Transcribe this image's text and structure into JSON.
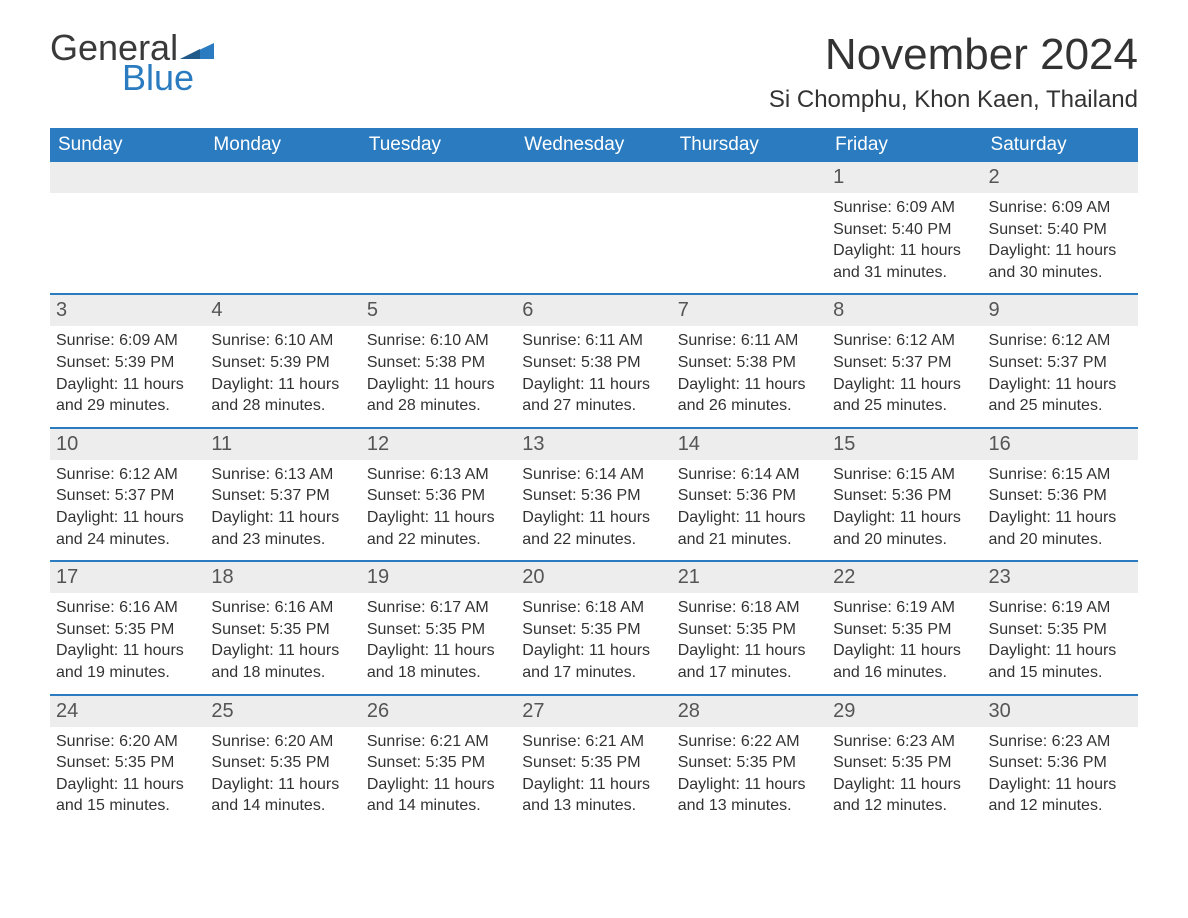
{
  "brand": {
    "part1": "General",
    "part2": "Blue",
    "flag_color": "#2a7bbf"
  },
  "title": "November 2024",
  "location": "Si Chomphu, Khon Kaen, Thailand",
  "colors": {
    "header_bg": "#2a7bbf",
    "header_text": "#ffffff",
    "daynum_bg": "#ededed",
    "text": "#333333",
    "rule": "#2a7bbf"
  },
  "weekday_labels": [
    "Sunday",
    "Monday",
    "Tuesday",
    "Wednesday",
    "Thursday",
    "Friday",
    "Saturday"
  ],
  "weeks": [
    [
      null,
      null,
      null,
      null,
      null,
      {
        "n": "1",
        "sunrise": "Sunrise: 6:09 AM",
        "sunset": "Sunset: 5:40 PM",
        "day1": "Daylight: 11 hours",
        "day2": "and 31 minutes."
      },
      {
        "n": "2",
        "sunrise": "Sunrise: 6:09 AM",
        "sunset": "Sunset: 5:40 PM",
        "day1": "Daylight: 11 hours",
        "day2": "and 30 minutes."
      }
    ],
    [
      {
        "n": "3",
        "sunrise": "Sunrise: 6:09 AM",
        "sunset": "Sunset: 5:39 PM",
        "day1": "Daylight: 11 hours",
        "day2": "and 29 minutes."
      },
      {
        "n": "4",
        "sunrise": "Sunrise: 6:10 AM",
        "sunset": "Sunset: 5:39 PM",
        "day1": "Daylight: 11 hours",
        "day2": "and 28 minutes."
      },
      {
        "n": "5",
        "sunrise": "Sunrise: 6:10 AM",
        "sunset": "Sunset: 5:38 PM",
        "day1": "Daylight: 11 hours",
        "day2": "and 28 minutes."
      },
      {
        "n": "6",
        "sunrise": "Sunrise: 6:11 AM",
        "sunset": "Sunset: 5:38 PM",
        "day1": "Daylight: 11 hours",
        "day2": "and 27 minutes."
      },
      {
        "n": "7",
        "sunrise": "Sunrise: 6:11 AM",
        "sunset": "Sunset: 5:38 PM",
        "day1": "Daylight: 11 hours",
        "day2": "and 26 minutes."
      },
      {
        "n": "8",
        "sunrise": "Sunrise: 6:12 AM",
        "sunset": "Sunset: 5:37 PM",
        "day1": "Daylight: 11 hours",
        "day2": "and 25 minutes."
      },
      {
        "n": "9",
        "sunrise": "Sunrise: 6:12 AM",
        "sunset": "Sunset: 5:37 PM",
        "day1": "Daylight: 11 hours",
        "day2": "and 25 minutes."
      }
    ],
    [
      {
        "n": "10",
        "sunrise": "Sunrise: 6:12 AM",
        "sunset": "Sunset: 5:37 PM",
        "day1": "Daylight: 11 hours",
        "day2": "and 24 minutes."
      },
      {
        "n": "11",
        "sunrise": "Sunrise: 6:13 AM",
        "sunset": "Sunset: 5:37 PM",
        "day1": "Daylight: 11 hours",
        "day2": "and 23 minutes."
      },
      {
        "n": "12",
        "sunrise": "Sunrise: 6:13 AM",
        "sunset": "Sunset: 5:36 PM",
        "day1": "Daylight: 11 hours",
        "day2": "and 22 minutes."
      },
      {
        "n": "13",
        "sunrise": "Sunrise: 6:14 AM",
        "sunset": "Sunset: 5:36 PM",
        "day1": "Daylight: 11 hours",
        "day2": "and 22 minutes."
      },
      {
        "n": "14",
        "sunrise": "Sunrise: 6:14 AM",
        "sunset": "Sunset: 5:36 PM",
        "day1": "Daylight: 11 hours",
        "day2": "and 21 minutes."
      },
      {
        "n": "15",
        "sunrise": "Sunrise: 6:15 AM",
        "sunset": "Sunset: 5:36 PM",
        "day1": "Daylight: 11 hours",
        "day2": "and 20 minutes."
      },
      {
        "n": "16",
        "sunrise": "Sunrise: 6:15 AM",
        "sunset": "Sunset: 5:36 PM",
        "day1": "Daylight: 11 hours",
        "day2": "and 20 minutes."
      }
    ],
    [
      {
        "n": "17",
        "sunrise": "Sunrise: 6:16 AM",
        "sunset": "Sunset: 5:35 PM",
        "day1": "Daylight: 11 hours",
        "day2": "and 19 minutes."
      },
      {
        "n": "18",
        "sunrise": "Sunrise: 6:16 AM",
        "sunset": "Sunset: 5:35 PM",
        "day1": "Daylight: 11 hours",
        "day2": "and 18 minutes."
      },
      {
        "n": "19",
        "sunrise": "Sunrise: 6:17 AM",
        "sunset": "Sunset: 5:35 PM",
        "day1": "Daylight: 11 hours",
        "day2": "and 18 minutes."
      },
      {
        "n": "20",
        "sunrise": "Sunrise: 6:18 AM",
        "sunset": "Sunset: 5:35 PM",
        "day1": "Daylight: 11 hours",
        "day2": "and 17 minutes."
      },
      {
        "n": "21",
        "sunrise": "Sunrise: 6:18 AM",
        "sunset": "Sunset: 5:35 PM",
        "day1": "Daylight: 11 hours",
        "day2": "and 17 minutes."
      },
      {
        "n": "22",
        "sunrise": "Sunrise: 6:19 AM",
        "sunset": "Sunset: 5:35 PM",
        "day1": "Daylight: 11 hours",
        "day2": "and 16 minutes."
      },
      {
        "n": "23",
        "sunrise": "Sunrise: 6:19 AM",
        "sunset": "Sunset: 5:35 PM",
        "day1": "Daylight: 11 hours",
        "day2": "and 15 minutes."
      }
    ],
    [
      {
        "n": "24",
        "sunrise": "Sunrise: 6:20 AM",
        "sunset": "Sunset: 5:35 PM",
        "day1": "Daylight: 11 hours",
        "day2": "and 15 minutes."
      },
      {
        "n": "25",
        "sunrise": "Sunrise: 6:20 AM",
        "sunset": "Sunset: 5:35 PM",
        "day1": "Daylight: 11 hours",
        "day2": "and 14 minutes."
      },
      {
        "n": "26",
        "sunrise": "Sunrise: 6:21 AM",
        "sunset": "Sunset: 5:35 PM",
        "day1": "Daylight: 11 hours",
        "day2": "and 14 minutes."
      },
      {
        "n": "27",
        "sunrise": "Sunrise: 6:21 AM",
        "sunset": "Sunset: 5:35 PM",
        "day1": "Daylight: 11 hours",
        "day2": "and 13 minutes."
      },
      {
        "n": "28",
        "sunrise": "Sunrise: 6:22 AM",
        "sunset": "Sunset: 5:35 PM",
        "day1": "Daylight: 11 hours",
        "day2": "and 13 minutes."
      },
      {
        "n": "29",
        "sunrise": "Sunrise: 6:23 AM",
        "sunset": "Sunset: 5:35 PM",
        "day1": "Daylight: 11 hours",
        "day2": "and 12 minutes."
      },
      {
        "n": "30",
        "sunrise": "Sunrise: 6:23 AM",
        "sunset": "Sunset: 5:36 PM",
        "day1": "Daylight: 11 hours",
        "day2": "and 12 minutes."
      }
    ]
  ]
}
